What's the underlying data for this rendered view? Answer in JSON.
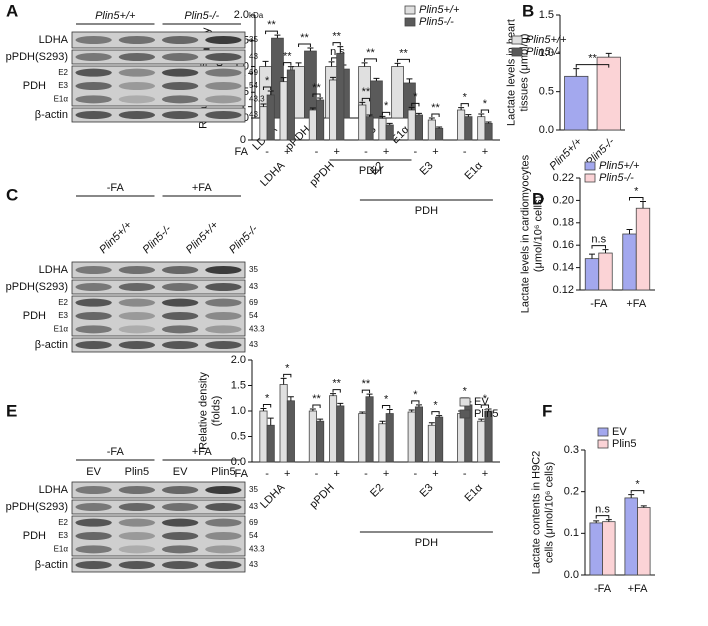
{
  "chart_data": [
    {
      "type": "bar",
      "panel": "A",
      "ylabel": [
        "Relative density",
        "(folds)"
      ],
      "categories": [
        "LDHA",
        "pPDH",
        "E2",
        "E3",
        "E1α"
      ],
      "group_label": "PDH",
      "series": [
        {
          "name": "Plin5+/+",
          "color": "#e0e0e0",
          "values": [
            1.0,
            1.0,
            1.0,
            1.0,
            1.0
          ],
          "errors": [
            0.1,
            0.07,
            0.09,
            0.07,
            0.06
          ]
        },
        {
          "name": "Plin5-/-",
          "color": "#5a5a5a",
          "values": [
            1.55,
            1.3,
            0.95,
            0.72,
            0.68
          ],
          "errors": [
            0.06,
            0.06,
            0.08,
            0.05,
            0.08
          ]
        }
      ],
      "annotations": [
        "**",
        "**",
        "n.s",
        "**",
        "**"
      ],
      "ylim": [
        0,
        2.0
      ],
      "yticks": [
        {
          "value": 0,
          "label": "0.0"
        },
        {
          "value": 0.5,
          "label": "0.5"
        },
        {
          "value": 1,
          "label": "1.0"
        },
        {
          "value": 1.5,
          "label": "1.5"
        },
        {
          "value": 2,
          "label": "2.0"
        }
      ]
    },
    {
      "type": "bar",
      "panel": "B",
      "ylabel": [
        "Lactate levels in heart",
        "tissues (μmol/g)"
      ],
      "categories": [
        "Plin5+/+",
        "Plin5-/-"
      ],
      "series": [
        {
          "name": null,
          "colors": [
            "#a3a8ee",
            "#fbd3d6"
          ],
          "values": [
            0.7,
            0.95
          ],
          "errors": [
            0.1,
            0.05
          ]
        }
      ],
      "annotations": [
        "**"
      ],
      "ylim": [
        0,
        1.5
      ],
      "yticks": [
        {
          "value": 0,
          "label": "0.0"
        },
        {
          "value": 0.5,
          "label": "0.5"
        },
        {
          "value": 1,
          "label": "1.0"
        },
        {
          "value": 1.5,
          "label": "1.5"
        }
      ]
    },
    {
      "type": "bar",
      "panel": "C",
      "ylabel": [
        "Relative density",
        "(folds)"
      ],
      "groups": [
        "LDHA",
        "pPDH",
        "E2",
        "E3",
        "E1α"
      ],
      "group_label": "PDH",
      "subcategory_label": "FA",
      "categories": [
        "-",
        "+",
        "-",
        "+",
        "-",
        "+",
        "-",
        "+",
        "-",
        "+"
      ],
      "series": [
        {
          "name": "Plin5+/+",
          "color": "#e0e0e0",
          "values": [
            1.0,
            1.75,
            0.9,
            1.8,
            1.05,
            0.65,
            0.9,
            0.6,
            0.9,
            0.7
          ],
          "errors": [
            0.08,
            0.12,
            0.06,
            0.08,
            0.08,
            0.06,
            0.08,
            0.06,
            0.07,
            0.08
          ]
        },
        {
          "name": "Plin5-/-",
          "color": "#5a5a5a",
          "values": [
            1.35,
            2.1,
            1.2,
            2.6,
            0.7,
            0.45,
            0.75,
            0.35,
            0.7,
            0.5
          ],
          "errors": [
            0.12,
            0.1,
            0.06,
            0.2,
            0.05,
            0.05,
            0.05,
            0.04,
            0.06,
            0.04
          ]
        }
      ],
      "annotations": [
        "*",
        "**",
        "**",
        "**",
        "**",
        "*",
        "*",
        "**",
        "*",
        "*"
      ],
      "ylim": [
        0,
        3
      ],
      "yticks": [
        0,
        1,
        2,
        3
      ]
    },
    {
      "type": "bar",
      "panel": "D",
      "ylabel": [
        "Lactate levels in cardiomyocytes",
        "(μmol/10⁶ cells)"
      ],
      "categories": [
        "-FA",
        "+FA"
      ],
      "series": [
        {
          "name": "Plin5+/+",
          "color": "#a3a8ee",
          "values": [
            0.148,
            0.17
          ],
          "errors": [
            0.004,
            0.004
          ]
        },
        {
          "name": "Plin5-/-",
          "color": "#fbd3d6",
          "values": [
            0.153,
            0.193
          ],
          "errors": [
            0.003,
            0.006
          ]
        }
      ],
      "annotations": [
        "n.s",
        "*"
      ],
      "ylim": [
        0.12,
        0.22
      ],
      "yticks": [
        0.12,
        0.14,
        0.16,
        0.18,
        {
          "value": 0.2,
          "label": "0.20"
        },
        0.22
      ]
    },
    {
      "type": "bar",
      "panel": "E",
      "ylabel": [
        "Relative density",
        "(folds)"
      ],
      "groups": [
        "LDHA",
        "pPDH",
        "E2",
        "E3",
        "E1α"
      ],
      "group_label": "PDH",
      "subcategory_label": "FA",
      "categories": [
        "-",
        "+",
        "-",
        "+",
        "-",
        "+",
        "-",
        "+",
        "-",
        "+"
      ],
      "series": [
        {
          "name": "EV",
          "color": "#e0e0e0",
          "values": [
            1.0,
            1.52,
            1.0,
            1.3,
            0.95,
            0.75,
            0.98,
            0.72,
            0.95,
            0.8
          ],
          "errors": [
            0.05,
            0.12,
            0.04,
            0.04,
            0.03,
            0.05,
            0.04,
            0.05,
            0.05,
            0.04
          ]
        },
        {
          "name": "Plin5",
          "color": "#5a5a5a",
          "values": [
            0.72,
            1.2,
            0.8,
            1.1,
            1.28,
            0.95,
            1.08,
            0.88,
            1.12,
            1.0
          ],
          "errors": [
            0.14,
            0.08,
            0.04,
            0.05,
            0.05,
            0.08,
            0.04,
            0.03,
            0.06,
            0.04
          ]
        }
      ],
      "annotations": [
        "*",
        "*",
        "**",
        "**",
        "**",
        "*",
        "*",
        "*",
        "*",
        "*"
      ],
      "ylim": [
        0,
        2.0
      ],
      "yticks": [
        {
          "value": 0,
          "label": "0.0"
        },
        {
          "value": 0.5,
          "label": "0.5"
        },
        {
          "value": 1,
          "label": "1.0"
        },
        {
          "value": 1.5,
          "label": "1.5"
        },
        {
          "value": 2,
          "label": "2.0"
        }
      ]
    },
    {
      "type": "bar",
      "panel": "F",
      "ylabel": [
        "Lactate contents in H9C2",
        "cells (μmol/10⁶ cells)"
      ],
      "categories": [
        "-FA",
        "+FA"
      ],
      "series": [
        {
          "name": "EV",
          "color": "#a3a8ee",
          "values": [
            0.125,
            0.185
          ],
          "errors": [
            0.005,
            0.008
          ]
        },
        {
          "name": "Plin5",
          "color": "#fbd3d6",
          "values": [
            0.128,
            0.162
          ],
          "errors": [
            0.005,
            0.004
          ]
        }
      ],
      "annotations": [
        "n.s",
        "*"
      ],
      "ylim": [
        0,
        0.3
      ],
      "yticks": [
        {
          "value": 0,
          "label": "0.0"
        },
        0.1,
        0.2,
        0.3
      ]
    }
  ],
  "blots": [
    {
      "header": [
        "Plin5+/+",
        "Plin5-/-"
      ],
      "kda_label": "kDa",
      "rows": [
        {
          "label": "LDHA",
          "kda": [
            35
          ]
        },
        {
          "label": "pPDH(S293)",
          "kda": [
            43
          ]
        },
        {
          "label": "PDH",
          "bands": [
            "E2",
            "E3",
            "E1α"
          ],
          "kda": [
            69,
            54,
            43.3
          ]
        },
        {
          "label": "β-actin",
          "kda": [
            43
          ]
        }
      ]
    },
    {
      "header": [
        "-FA",
        "+FA"
      ],
      "lanes": [
        "Plin5+/+",
        "Plin5-/-",
        "Plin5+/+",
        "Plin5-/-"
      ],
      "rows": [
        {
          "label": "LDHA",
          "kda": [
            35
          ]
        },
        {
          "label": "pPDH(S293)",
          "kda": [
            43
          ]
        },
        {
          "label": "PDH",
          "bands": [
            "E2",
            "E3",
            "E1α"
          ],
          "kda": [
            69,
            54,
            43.3
          ]
        },
        {
          "label": "β-actin",
          "kda": [
            43
          ]
        }
      ]
    },
    {
      "header": [
        "-FA",
        "+FA"
      ],
      "lanes": [
        "EV",
        "Plin5",
        "EV",
        "Plin5"
      ],
      "rows": [
        {
          "label": "LDHA",
          "kda": [
            35
          ]
        },
        {
          "label": "pPDH(S293)",
          "kda": [
            43
          ]
        },
        {
          "label": "PDH",
          "bands": [
            "E2",
            "E3",
            "E1α"
          ],
          "kda": [
            69,
            54,
            43.3
          ]
        },
        {
          "label": "β-actin",
          "kda": [
            43
          ]
        }
      ]
    }
  ]
}
